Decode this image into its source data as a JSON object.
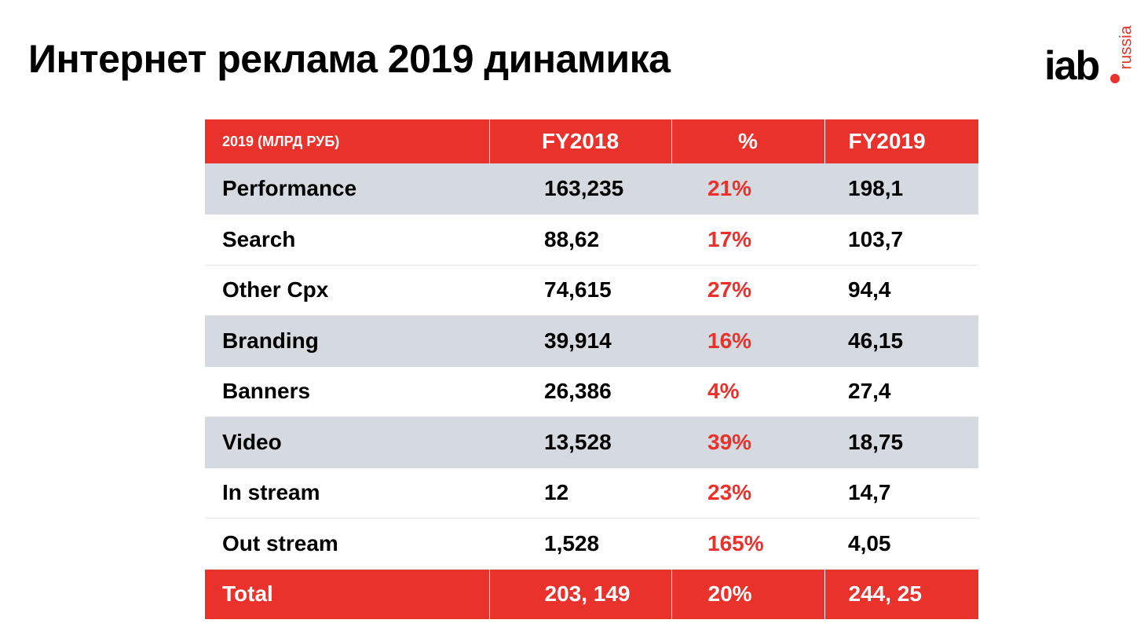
{
  "title": "Интернет реклама 2019 динамика",
  "logo": {
    "main": "iab",
    "sub": "russia"
  },
  "colors": {
    "accent": "#e8322b",
    "row_shade": "#d5d9e0",
    "text": "#000000",
    "header_text": "#ffffff"
  },
  "table": {
    "headers": [
      "2019 (МЛРД РУБ)",
      "FY2018",
      "%",
      "FY2019"
    ],
    "rows": [
      {
        "label": "Performance",
        "fy2018": "163,235",
        "pct": "21%",
        "fy2019": "198,1"
      },
      {
        "label": "Search",
        "fy2018": "88,62",
        "pct": "17%",
        "fy2019": "103,7"
      },
      {
        "label": "Other Cpx",
        "fy2018": "74,615",
        "pct": "27%",
        "fy2019": "94,4"
      },
      {
        "label": "Branding",
        "fy2018": "39,914",
        "pct": "16%",
        "fy2019": "46,15"
      },
      {
        "label": "Banners",
        "fy2018": "26,386",
        "pct": "4%",
        "fy2019": "27,4"
      },
      {
        "label": "Video",
        "fy2018": "13,528",
        "pct": "39%",
        "fy2019": "18,75"
      },
      {
        "label": "In stream",
        "fy2018": "12",
        "pct": "23%",
        "fy2019": "14,7"
      },
      {
        "label": "Out stream",
        "fy2018": "1,528",
        "pct": "165%",
        "fy2019": "4,05"
      }
    ],
    "total": {
      "label": "Total",
      "fy2018": "203, 149",
      "pct": "20%",
      "fy2019": "244, 25"
    }
  }
}
